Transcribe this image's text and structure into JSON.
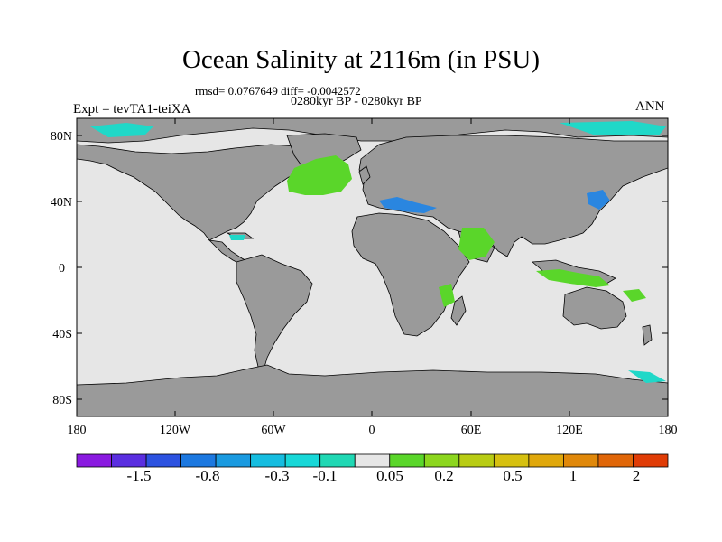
{
  "title": "Ocean Salinity at 2116m (in PSU)",
  "stats": "rmsd= 0.0767649 diff= -0.0042572",
  "period": "0280kyr BP - 0280kyr BP",
  "experiment": "Expt = tevTA1-teiXA",
  "season": "ANN",
  "lat_ticks": [
    "80N",
    "40N",
    "0",
    "40S",
    "80S"
  ],
  "lon_ticks": [
    "180",
    "120W",
    "60W",
    "0",
    "60E",
    "120E",
    "180"
  ],
  "colorbar": {
    "labels": [
      "-1.5",
      "-0.8",
      "-0.3",
      "-0.1",
      "0.05",
      "0.2",
      "0.5",
      "1",
      "2"
    ],
    "colors": [
      "#8a1ae0",
      "#5a2ee0",
      "#2c52e0",
      "#1c78e0",
      "#1a9ae0",
      "#16bde0",
      "#18d8d8",
      "#20d8b4",
      "#e6e6e6",
      "#5ad62a",
      "#8cd61e",
      "#b8cc14",
      "#d6c010",
      "#e0a80c",
      "#e0880a",
      "#e06608",
      "#e03c06"
    ]
  },
  "colors": {
    "land": "#9a9a9a",
    "ocean_neutral": "#e6e6e6",
    "fresh_anomaly": "#2a86e0",
    "salty_anomaly": "#5ad62a",
    "polar_anomaly": "#20d8c8"
  }
}
